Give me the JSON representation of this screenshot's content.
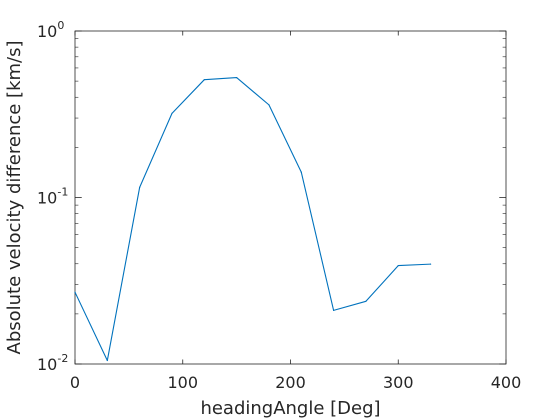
{
  "chart_data": {
    "type": "line",
    "xlabel": "headingAngle [Deg]",
    "ylabel": "Absolute velocity difference [km/s]",
    "xlim": [
      0,
      400
    ],
    "ylim": [
      0.01,
      1
    ],
    "yscale": "log",
    "grid": false,
    "x_ticks": [
      "0",
      "100",
      "200",
      "300",
      "400"
    ],
    "y_ticks": [
      {
        "base": "10",
        "exp": "-2",
        "value": 0.01
      },
      {
        "base": "10",
        "exp": "-1",
        "value": 0.1
      },
      {
        "base": "10",
        "exp": "0",
        "value": 1
      }
    ],
    "series": [
      {
        "color": "#0072bd",
        "x": [
          0,
          30,
          60,
          90,
          120,
          150,
          180,
          210,
          240,
          270,
          300,
          330
        ],
        "y": [
          0.027,
          0.0105,
          0.115,
          0.32,
          0.51,
          0.525,
          0.36,
          0.142,
          0.021,
          0.0238,
          0.039,
          0.0398
        ]
      }
    ]
  }
}
